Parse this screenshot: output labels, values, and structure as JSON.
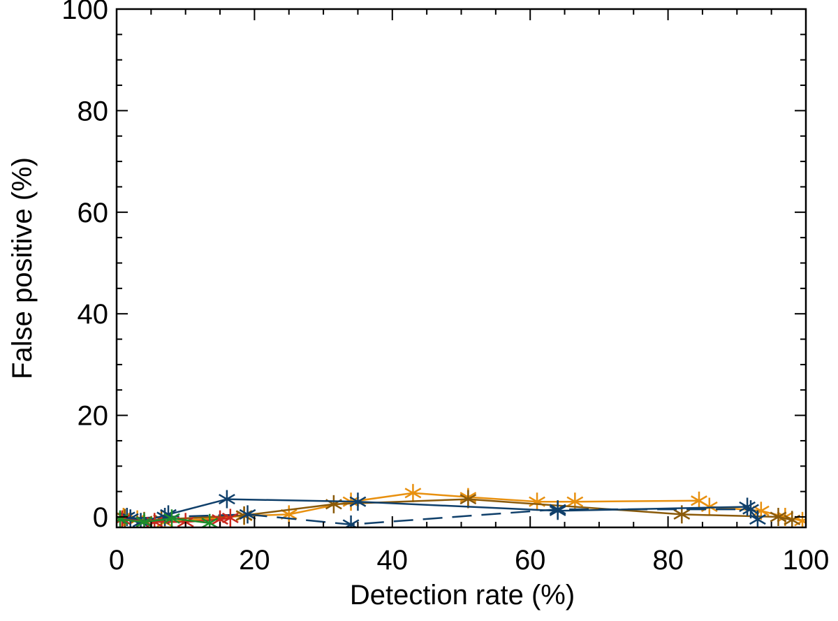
{
  "chart_data": {
    "type": "line",
    "title": "",
    "xlabel": "Detection rate (%)",
    "ylabel": "False positive (%)",
    "xlim": [
      0,
      100
    ],
    "ylim": [
      -2,
      100
    ],
    "xticks": [
      0,
      20,
      40,
      60,
      80,
      100
    ],
    "yticks": [
      0,
      20,
      40,
      60,
      80,
      100
    ],
    "xtick_labels": [
      "0",
      "20",
      "40",
      "60",
      "80",
      "100"
    ],
    "ytick_labels": [
      "0",
      "20",
      "40",
      "60",
      "80",
      "100"
    ],
    "grid": false,
    "marker": "asterisk",
    "series": [
      {
        "name": "series-orange",
        "color": "#e8900f",
        "dash": "solid",
        "points": [
          [
            1.0,
            0.0
          ],
          [
            3.0,
            -0.5
          ],
          [
            7.0,
            -1.0
          ],
          [
            18.5,
            0.2
          ],
          [
            25.0,
            0.5
          ],
          [
            34.0,
            3.0
          ],
          [
            43.0,
            4.7
          ],
          [
            51.0,
            3.9
          ],
          [
            61.0,
            3.0
          ],
          [
            66.5,
            3.0
          ],
          [
            84.5,
            3.2
          ],
          [
            86.0,
            2.0
          ],
          [
            93.5,
            1.2
          ],
          [
            97.0,
            0.0
          ],
          [
            99.5,
            -0.8
          ]
        ]
      },
      {
        "name": "series-brown",
        "color": "#8a5a0a",
        "dash": "solid",
        "points": [
          [
            1.2,
            -0.2
          ],
          [
            4.0,
            -0.8
          ],
          [
            6.5,
            -0.5
          ],
          [
            18.5,
            0.3
          ],
          [
            31.5,
            2.5
          ],
          [
            51.0,
            3.5
          ],
          [
            82.0,
            0.5
          ],
          [
            96.0,
            0.0
          ],
          [
            98.0,
            -0.6
          ]
        ]
      },
      {
        "name": "series-navy",
        "color": "#0f3f6a",
        "dash": "solid",
        "points": [
          [
            1.5,
            0.0
          ],
          [
            3.5,
            -1.0
          ],
          [
            7.5,
            0.5
          ],
          [
            16.0,
            3.5
          ],
          [
            35.0,
            3.0
          ],
          [
            64.0,
            1.2
          ],
          [
            91.5,
            2.0
          ],
          [
            93.0,
            -0.5
          ]
        ]
      },
      {
        "name": "series-navy-dashed",
        "color": "#0f3f6a",
        "dash": "dashed",
        "points": [
          [
            2.0,
            -0.3
          ],
          [
            7.0,
            0.0
          ],
          [
            19.0,
            0.5
          ],
          [
            34.0,
            -1.5
          ],
          [
            64.0,
            1.5
          ],
          [
            92.0,
            1.5
          ]
        ]
      },
      {
        "name": "series-red",
        "color": "#c8281e",
        "dash": "solid",
        "points": [
          [
            0.8,
            -0.5
          ],
          [
            5.5,
            -1.0
          ],
          [
            10.0,
            -1.0
          ],
          [
            15.0,
            -0.5
          ],
          [
            16.5,
            -0.2
          ]
        ]
      },
      {
        "name": "series-green",
        "color": "#1e8c2a",
        "dash": "solid",
        "points": [
          [
            0.5,
            -0.5
          ],
          [
            4.0,
            -1.0
          ],
          [
            8.0,
            -0.3
          ],
          [
            13.5,
            -1.2
          ]
        ]
      }
    ]
  }
}
